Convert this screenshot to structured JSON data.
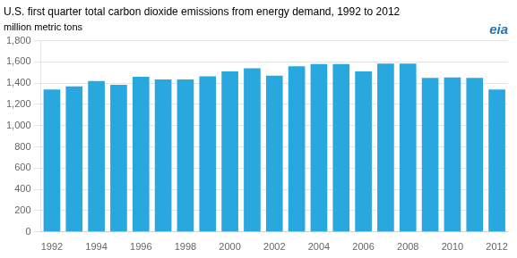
{
  "chart_data": {
    "type": "bar",
    "title": "U.S. first quarter total carbon dioxide emissions from energy demand, 1992 to 2012",
    "subtitle": "million metric tons",
    "annotations": [
      {
        "text": "eia",
        "color": "#1a75bc"
      }
    ],
    "categories": [
      "1992",
      null,
      "1994",
      null,
      "1996",
      null,
      "1998",
      null,
      "2000",
      null,
      "2002",
      null,
      "2004",
      null,
      "2006",
      null,
      "2008",
      null,
      "2010",
      null,
      "2012"
    ],
    "values": [
      1340,
      1370,
      1420,
      1385,
      1460,
      1435,
      1435,
      1465,
      1510,
      1540,
      1470,
      1560,
      1580,
      1580,
      1510,
      1585,
      1585,
      1450,
      1455,
      1450,
      1340
    ],
    "color": "#29a8e0",
    "ylim": [
      0,
      1800
    ],
    "yticks": [
      0,
      200,
      400,
      600,
      800,
      {
        "value": 1000,
        "label": "1,000"
      },
      {
        "value": 1200,
        "label": "1,200"
      },
      {
        "value": 1400,
        "label": "1,400"
      },
      {
        "value": 1600,
        "label": "1,600"
      },
      {
        "value": 1800,
        "label": "1,800"
      }
    ],
    "grid": "y"
  }
}
